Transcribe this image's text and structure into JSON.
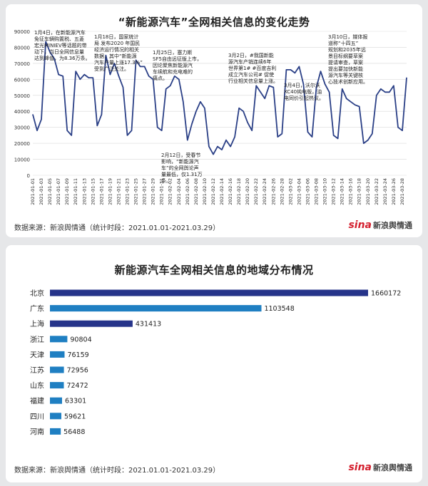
{
  "panel_top": {
    "title": "“新能源汽车”全网相关信息的变化走势",
    "source": "数据来源：新浪舆情通（统计时段：2021.01.01-2021.03.29）",
    "brand": {
      "logo": "sina",
      "name": "新浪舆情通"
    }
  },
  "panel_bottom": {
    "title": "新能源汽车全网相关信息的地域分布情况",
    "source": "数据来源：新浪舆情通（统计时段：2021.01.01-2021.03.29）",
    "brand": {
      "logo": "sina",
      "name": "新浪舆情通"
    }
  },
  "annotations": [
    {
      "id": "a1",
      "text": "1月4日，在新能源汽车\n免征车辆购置税、五菱\n宏光MINIEV等话题的带\n动下，当日全网信息量\n达到峰值，为8.36万条。"
    },
    {
      "id": "a2",
      "text": "1月18日，国家统计\n局 发布2020 年国民\n经济运行情况的相关\n数据，其中“新能源\n汽车产量上涨17.3%”\n受到广泛关注。"
    },
    {
      "id": "a3",
      "text": "1月25日，塞力斯\nSF5自由远征版上市，\n因论聚焦新能源汽\n车续航和充电难的\n痛点。"
    },
    {
      "id": "a4",
      "text": "2月12日，受春节\n影响，“新能源汽\n车”的全网舆论声\n量最低，仅1.31万\n条。"
    },
    {
      "id": "a5",
      "text": "3月2日，#我国新能\n源汽车产销连续6年\n世界第1# #百度吉利\n成立汽车公司# 促使\n行业相关信息量上涨。"
    },
    {
      "id": "a6",
      "text": "3月4日，沃尔沃\nXC40纯电版，油\n电同价引起热议。"
    },
    {
      "id": "a7",
      "text": "3月10日，媒体报\n道称“十四五”\n规划和2035年远\n景目标纲要草案\n提请审查，草案\n提出要加快新能\n源汽车等关键核\n心技术创新应用。"
    }
  ],
  "chart_data": [
    {
      "type": "line",
      "title": "“新能源汽车”全网相关信息的变化走势",
      "xlabel": "",
      "ylabel": "",
      "ylim": [
        0,
        90000
      ],
      "yticks": [
        0,
        10000,
        20000,
        30000,
        40000,
        50000,
        60000,
        70000,
        80000,
        90000
      ],
      "grid": true,
      "color": "#2a3f86",
      "x": [
        "2021-01-01",
        "2021-01-02",
        "2021-01-03",
        "2021-01-04",
        "2021-01-05",
        "2021-01-06",
        "2021-01-07",
        "2021-01-08",
        "2021-01-09",
        "2021-01-10",
        "2021-01-11",
        "2021-01-12",
        "2021-01-13",
        "2021-01-14",
        "2021-01-15",
        "2021-01-16",
        "2021-01-17",
        "2021-01-18",
        "2021-01-19",
        "2021-01-20",
        "2021-01-21",
        "2021-01-22",
        "2021-01-23",
        "2021-01-24",
        "2021-01-25",
        "2021-01-26",
        "2021-01-27",
        "2021-01-28",
        "2021-01-29",
        "2021-01-30",
        "2021-01-31",
        "2021-02-01",
        "2021-02-02",
        "2021-02-03",
        "2021-02-04",
        "2021-02-05",
        "2021-02-06",
        "2021-02-07",
        "2021-02-08",
        "2021-02-09",
        "2021-02-10",
        "2021-02-11",
        "2021-02-12",
        "2021-02-13",
        "2021-02-14",
        "2021-02-15",
        "2021-02-16",
        "2021-02-17",
        "2021-02-18",
        "2021-02-19",
        "2021-02-20",
        "2021-02-21",
        "2021-02-22",
        "2021-02-23",
        "2021-02-24",
        "2021-02-25",
        "2021-02-26",
        "2021-02-27",
        "2021-02-28",
        "2021-03-01",
        "2021-03-02",
        "2021-03-03",
        "2021-03-04",
        "2021-03-05",
        "2021-03-06",
        "2021-03-07",
        "2021-03-08",
        "2021-03-09",
        "2021-03-10",
        "2021-03-11",
        "2021-03-12",
        "2021-03-13",
        "2021-03-14",
        "2021-03-15",
        "2021-03-16",
        "2021-03-17",
        "2021-03-18",
        "2021-03-19",
        "2021-03-20",
        "2021-03-21",
        "2021-03-22",
        "2021-03-23",
        "2021-03-24",
        "2021-03-25",
        "2021-03-26",
        "2021-03-27",
        "2021-03-28",
        "2021-03-29"
      ],
      "xticks": [
        "2021-01-01",
        "2021-01-03",
        "2021-01-05",
        "2021-01-07",
        "2021-01-09",
        "2021-01-11",
        "2021-01-13",
        "2021-01-15",
        "2021-01-17",
        "2021-01-19",
        "2021-01-21",
        "2021-01-23",
        "2021-01-25",
        "2021-01-27",
        "2021-01-29",
        "2021-01-31",
        "2021-02-02",
        "2021-02-04",
        "2021-02-06",
        "2021-02-08",
        "2021-02-10",
        "2021-02-12",
        "2021-02-14",
        "2021-02-16",
        "2021-02-18",
        "2021-02-20",
        "2021-02-22",
        "2021-02-24",
        "2021-02-26",
        "2021-02-28",
        "2021-03-02",
        "2021-03-04",
        "2021-03-06",
        "2021-03-08",
        "2021-03-10",
        "2021-03-12",
        "2021-03-14",
        "2021-03-16",
        "2021-03-18",
        "2021-03-20",
        "2021-03-22",
        "2021-03-24",
        "2021-03-26",
        "2021-03-28"
      ],
      "values": [
        38000,
        28000,
        35000,
        83600,
        77000,
        73000,
        63000,
        62000,
        28000,
        25000,
        65000,
        60000,
        63000,
        61000,
        61000,
        31000,
        38000,
        75000,
        63000,
        70000,
        62000,
        55000,
        25000,
        28000,
        72000,
        68000,
        68000,
        62000,
        60000,
        30000,
        28000,
        54000,
        56000,
        62000,
        60000,
        46000,
        22000,
        32000,
        40000,
        46000,
        42000,
        18000,
        13100,
        18000,
        16000,
        22000,
        18000,
        24000,
        42000,
        40000,
        33000,
        28000,
        56000,
        52000,
        48000,
        56000,
        55000,
        24000,
        26000,
        66000,
        66000,
        64000,
        68000,
        57000,
        27000,
        24000,
        55000,
        65000,
        57000,
        52000,
        25000,
        23000,
        54000,
        48000,
        46000,
        44000,
        43000,
        20000,
        22000,
        26000,
        50000,
        54000,
        52000,
        52000,
        56000,
        30000,
        28000,
        61000
      ]
    },
    {
      "type": "bar",
      "orientation": "horizontal",
      "title": "新能源汽车全网相关信息的地域分布情况",
      "categories": [
        "北京",
        "广东",
        "上海",
        "浙江",
        "天津",
        "江苏",
        "山东",
        "福建",
        "四川",
        "河南"
      ],
      "values": [
        1660172,
        1103548,
        431413,
        90804,
        76159,
        72956,
        72472,
        63301,
        59621,
        56488
      ],
      "colors": [
        "#26348a",
        "#1f7fc2",
        "#26348a",
        "#1f7fc2",
        "#1f7fc2",
        "#1f7fc2",
        "#1f7fc2",
        "#1f7fc2",
        "#1f7fc2",
        "#1f7fc2"
      ]
    }
  ]
}
